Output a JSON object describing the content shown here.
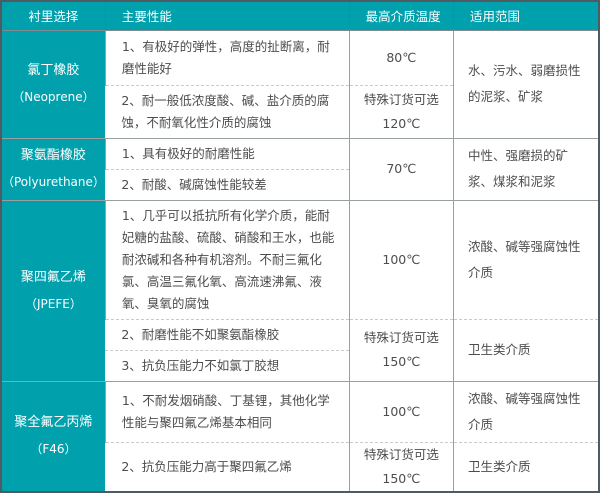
{
  "table": {
    "headers": [
      "衬里选择",
      "主要性能",
      "最高介质温度",
      "适用范围"
    ],
    "groups": [
      {
        "name": "氯丁橡胶",
        "en": "（Neoprene）",
        "props": [
          "1、有极好的弹性，高度的扯断离，耐磨性能好",
          "2、耐一般低浓度酸、碱、盐介质的腐蚀，不耐氧化性介质的腐蚀"
        ],
        "temps": [
          "80℃",
          "特殊订货可选\n120℃"
        ],
        "applies": [
          "水、污水、弱磨损性的泥浆、矿浆"
        ]
      },
      {
        "name": "聚氨酯橡胶",
        "en": "（Polyurethane）",
        "props": [
          "1、具有极好的耐磨性能",
          "2、耐酸、碱腐蚀性能较差"
        ],
        "temps": [
          "70℃"
        ],
        "applies": [
          "中性、强磨损的矿浆、煤浆和泥浆"
        ]
      },
      {
        "name": "聚四氟乙烯",
        "en": "（JPEFE）",
        "props": [
          "1、几乎可以抵抗所有化学介质，能耐妃糖的盐酸、硫酸、硝酸和王水，也能耐浓碱和各种有机溶剂。不耐三氟化氯、高温三氟化氧、高流速沸氟、液氧、臭氧的腐蚀",
          "2、耐磨性能不如聚氨酯橡胶",
          "3、抗负压能力不如氯丁胶想"
        ],
        "temps": [
          "100℃",
          "特殊订货可选\n150℃"
        ],
        "applies": [
          "浓酸、碱等强腐蚀性介质",
          "卫生类介质"
        ]
      },
      {
        "name": "聚全氟乙丙烯",
        "en": "（F46）",
        "props": [
          "1、不耐发烟硝酸、丁基锂，其他化学性能与聚四氟乙烯基本相同",
          "2、抗负压能力高于聚四氟乙烯"
        ],
        "temps": [
          "100℃",
          "特殊订货可选\n150℃"
        ],
        "applies": [
          "浓酸、碱等强腐蚀性介质",
          "卫生类介质"
        ]
      }
    ]
  },
  "colors": {
    "accent_teal": "#00a0ac",
    "outer_border": "#4f5b62",
    "inner_border": "#98a0a3",
    "dashed_border": "#c9c9c9",
    "text": "#4d4d4d"
  }
}
